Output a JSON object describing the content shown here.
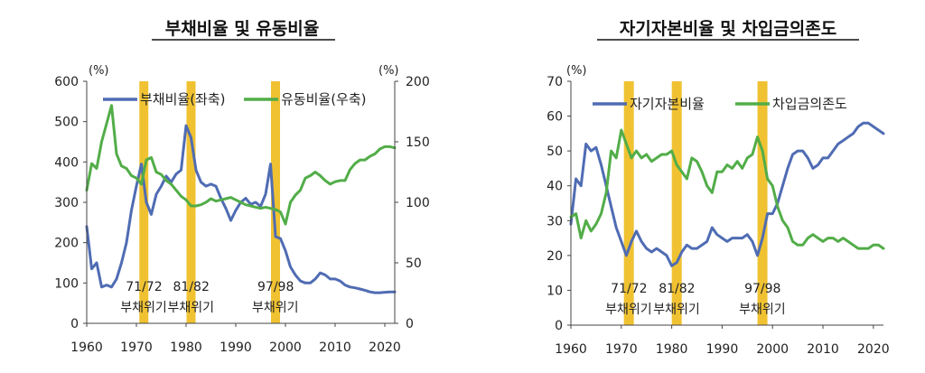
{
  "chart_data": [
    {
      "type": "line",
      "title": "부채비율 및 유동비율",
      "y_unit_left": "(%)",
      "y_unit_right": "(%)",
      "ylim_left": [
        0,
        600
      ],
      "ylim_right": [
        0,
        200
      ],
      "yticks_left": [
        "0",
        "100",
        "200",
        "300",
        "400",
        "500",
        "600"
      ],
      "yticks_right": [
        "0",
        "50",
        "100",
        "150",
        "200"
      ],
      "xlim": [
        1960,
        2022
      ],
      "xticks": [
        "1960",
        "1970",
        "1980",
        "1990",
        "2000",
        "2010",
        "2020"
      ],
      "colors": {
        "series1": "#4f6cb3",
        "series2": "#52ad48",
        "band": "#f0c232"
      },
      "crisis_bands": [
        {
          "x": 1971.5,
          "label_top": "71/72",
          "label_bottom": "부채위기"
        },
        {
          "x": 1981,
          "label_top": "81/82",
          "label_bottom": "부채위기"
        },
        {
          "x": 1998,
          "label_top": "97/98",
          "label_bottom": "부채위기"
        }
      ],
      "series": [
        {
          "name": "부채비율(좌축)",
          "axis": "left",
          "x": [
            1960,
            1961,
            1962,
            1963,
            1964,
            1965,
            1966,
            1967,
            1968,
            1969,
            1970,
            1971,
            1972,
            1973,
            1974,
            1975,
            1976,
            1977,
            1978,
            1979,
            1980,
            1981,
            1982,
            1983,
            1984,
            1985,
            1986,
            1987,
            1988,
            1989,
            1990,
            1991,
            1992,
            1993,
            1994,
            1995,
            1996,
            1997,
            1998,
            1999,
            2000,
            2001,
            2002,
            2003,
            2004,
            2005,
            2006,
            2007,
            2008,
            2009,
            2010,
            2011,
            2012,
            2013,
            2014,
            2015,
            2016,
            2017,
            2018,
            2019,
            2020,
            2021,
            2022
          ],
          "values": [
            240,
            135,
            150,
            90,
            95,
            90,
            110,
            150,
            200,
            280,
            340,
            395,
            300,
            270,
            320,
            340,
            365,
            350,
            370,
            380,
            490,
            460,
            380,
            350,
            340,
            345,
            340,
            310,
            285,
            255,
            280,
            300,
            310,
            295,
            300,
            290,
            320,
            395,
            215,
            210,
            180,
            140,
            120,
            105,
            100,
            100,
            110,
            125,
            120,
            110,
            110,
            105,
            95,
            90,
            88,
            85,
            82,
            78,
            76,
            76,
            77,
            78,
            78
          ]
        },
        {
          "name": "유동비율(우축)",
          "axis": "right",
          "x": [
            1960,
            1961,
            1962,
            1963,
            1964,
            1965,
            1966,
            1967,
            1968,
            1969,
            1970,
            1971,
            1972,
            1973,
            1974,
            1975,
            1976,
            1977,
            1978,
            1979,
            1980,
            1981,
            1982,
            1983,
            1984,
            1985,
            1986,
            1987,
            1988,
            1989,
            1990,
            1991,
            1992,
            1993,
            1994,
            1995,
            1996,
            1997,
            1998,
            1999,
            2000,
            2001,
            2002,
            2003,
            2004,
            2005,
            2006,
            2007,
            2008,
            2009,
            2010,
            2011,
            2012,
            2013,
            2014,
            2015,
            2016,
            2017,
            2018,
            2019,
            2020,
            2021,
            2022
          ],
          "values": [
            110,
            132,
            128,
            150,
            165,
            180,
            140,
            130,
            128,
            122,
            120,
            115,
            135,
            137,
            125,
            123,
            118,
            115,
            110,
            105,
            102,
            97,
            97,
            98,
            100,
            103,
            101,
            102,
            103,
            104,
            102,
            100,
            98,
            97,
            96,
            95,
            96,
            95,
            94,
            92,
            82,
            100,
            106,
            110,
            120,
            122,
            125,
            122,
            118,
            115,
            117,
            118,
            118,
            127,
            132,
            135,
            135,
            138,
            140,
            144,
            146,
            146,
            145
          ]
        }
      ]
    },
    {
      "type": "line",
      "title": "자기자본비율 및 차입금의존도",
      "y_unit_left": "(%)",
      "ylim_left": [
        0,
        70
      ],
      "yticks_left": [
        "0",
        "10",
        "20",
        "30",
        "40",
        "50",
        "60",
        "70"
      ],
      "xlim": [
        1960,
        2022
      ],
      "xticks": [
        "1960",
        "1970",
        "1980",
        "1990",
        "2000",
        "2010",
        "2020"
      ],
      "colors": {
        "series1": "#4f6cb3",
        "series2": "#52ad48",
        "band": "#f0c232"
      },
      "crisis_bands": [
        {
          "x": 1971.5,
          "label_top": "71/72",
          "label_bottom": "부채위기"
        },
        {
          "x": 1981,
          "label_top": "81/82",
          "label_bottom": "부채위기"
        },
        {
          "x": 1998,
          "label_top": "97/98",
          "label_bottom": "부채위기"
        }
      ],
      "series": [
        {
          "name": "자기자본비율",
          "axis": "left",
          "x": [
            1960,
            1961,
            1962,
            1963,
            1964,
            1965,
            1966,
            1967,
            1968,
            1969,
            1970,
            1971,
            1972,
            1973,
            1974,
            1975,
            1976,
            1977,
            1978,
            1979,
            1980,
            1981,
            1982,
            1983,
            1984,
            1985,
            1986,
            1987,
            1988,
            1989,
            1990,
            1991,
            1992,
            1993,
            1994,
            1995,
            1996,
            1997,
            1998,
            1999,
            2000,
            2001,
            2002,
            2003,
            2004,
            2005,
            2006,
            2007,
            2008,
            2009,
            2010,
            2011,
            2012,
            2013,
            2014,
            2015,
            2016,
            2017,
            2018,
            2019,
            2020,
            2021,
            2022
          ],
          "values": [
            29,
            42,
            40,
            52,
            50,
            51,
            46,
            40,
            34,
            28,
            24,
            20,
            24,
            27,
            24,
            22,
            21,
            22,
            21,
            20,
            17,
            18,
            21,
            23,
            22,
            22,
            23,
            24,
            28,
            26,
            25,
            24,
            25,
            25,
            25,
            26,
            24,
            20,
            25,
            32,
            32,
            35,
            40,
            45,
            49,
            50,
            50,
            48,
            45,
            46,
            48,
            48,
            50,
            52,
            53,
            54,
            55,
            57,
            58,
            58,
            57,
            56,
            55
          ]
        },
        {
          "name": "차입금의존도",
          "axis": "left",
          "x": [
            1960,
            1961,
            1962,
            1963,
            1964,
            1965,
            1966,
            1967,
            1968,
            1969,
            1970,
            1971,
            1972,
            1973,
            1974,
            1975,
            1976,
            1977,
            1978,
            1979,
            1980,
            1981,
            1982,
            1983,
            1984,
            1985,
            1986,
            1987,
            1988,
            1989,
            1990,
            1991,
            1992,
            1993,
            1994,
            1995,
            1996,
            1997,
            1998,
            1999,
            2000,
            2001,
            2002,
            2003,
            2004,
            2005,
            2006,
            2007,
            2008,
            2009,
            2010,
            2011,
            2012,
            2013,
            2014,
            2015,
            2016,
            2017,
            2018,
            2019,
            2020,
            2021,
            2022
          ],
          "values": [
            31,
            32,
            25,
            30,
            27,
            29,
            32,
            38,
            50,
            48,
            56,
            52,
            48,
            50,
            48,
            49,
            47,
            48,
            49,
            49,
            50,
            46,
            44,
            42,
            48,
            47,
            44,
            40,
            38,
            44,
            44,
            46,
            45,
            47,
            45,
            48,
            49,
            54,
            50,
            42,
            40,
            34,
            30,
            28,
            24,
            23,
            23,
            25,
            26,
            25,
            24,
            25,
            25,
            24,
            25,
            24,
            23,
            22,
            22,
            22,
            23,
            23,
            22
          ]
        }
      ]
    }
  ]
}
